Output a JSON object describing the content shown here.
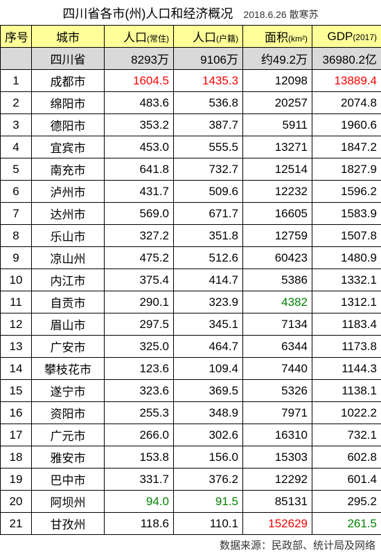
{
  "title_main": "四川省各市(州)人口和经济概况",
  "title_date": "2018.6.26 散寒苏",
  "header": {
    "idx": "序号",
    "city": "城市",
    "pop1": "人口",
    "pop1_unit": "(常住)",
    "pop2": "人口",
    "pop2_unit": "(户籍)",
    "area": "面积",
    "area_unit": "(km²)",
    "gdp": "GDP",
    "gdp_unit": "(2017)"
  },
  "total": {
    "city": "四川省",
    "pop1": "8293万",
    "pop2": "9106万",
    "area": "约49.2万",
    "gdp": "36980.2亿"
  },
  "rows": [
    {
      "idx": "1",
      "city": "成都市",
      "pop1": "1604.5",
      "pop1_c": "red",
      "pop2": "1435.3",
      "pop2_c": "red",
      "area": "12098",
      "area_c": "",
      "gdp": "13889.4",
      "gdp_c": "red"
    },
    {
      "idx": "2",
      "city": "绵阳市",
      "pop1": "483.6",
      "pop1_c": "",
      "pop2": "536.8",
      "pop2_c": "",
      "area": "20257",
      "area_c": "",
      "gdp": "2074.8",
      "gdp_c": ""
    },
    {
      "idx": "3",
      "city": "德阳市",
      "pop1": "353.2",
      "pop1_c": "",
      "pop2": "387.7",
      "pop2_c": "",
      "area": "5911",
      "area_c": "",
      "gdp": "1960.6",
      "gdp_c": ""
    },
    {
      "idx": "4",
      "city": "宜宾市",
      "pop1": "453.0",
      "pop1_c": "",
      "pop2": "555.5",
      "pop2_c": "",
      "area": "13271",
      "area_c": "",
      "gdp": "1847.2",
      "gdp_c": ""
    },
    {
      "idx": "5",
      "city": "南充市",
      "pop1": "641.8",
      "pop1_c": "",
      "pop2": "732.7",
      "pop2_c": "",
      "area": "12514",
      "area_c": "",
      "gdp": "1827.9",
      "gdp_c": ""
    },
    {
      "idx": "6",
      "city": "泸州市",
      "pop1": "431.7",
      "pop1_c": "",
      "pop2": "509.6",
      "pop2_c": "",
      "area": "12232",
      "area_c": "",
      "gdp": "1596.2",
      "gdp_c": ""
    },
    {
      "idx": "7",
      "city": "达州市",
      "pop1": "569.0",
      "pop1_c": "",
      "pop2": "671.7",
      "pop2_c": "",
      "area": "16605",
      "area_c": "",
      "gdp": "1583.9",
      "gdp_c": ""
    },
    {
      "idx": "8",
      "city": "乐山市",
      "pop1": "327.2",
      "pop1_c": "",
      "pop2": "351.8",
      "pop2_c": "",
      "area": "12759",
      "area_c": "",
      "gdp": "1507.8",
      "gdp_c": ""
    },
    {
      "idx": "9",
      "city": "凉山州",
      "pop1": "475.2",
      "pop1_c": "",
      "pop2": "512.6",
      "pop2_c": "",
      "area": "60423",
      "area_c": "",
      "gdp": "1480.9",
      "gdp_c": ""
    },
    {
      "idx": "10",
      "city": "内江市",
      "pop1": "375.4",
      "pop1_c": "",
      "pop2": "414.7",
      "pop2_c": "",
      "area": "5386",
      "area_c": "",
      "gdp": "1332.1",
      "gdp_c": ""
    },
    {
      "idx": "11",
      "city": "自贡市",
      "pop1": "290.1",
      "pop1_c": "",
      "pop2": "323.9",
      "pop2_c": "",
      "area": "4382",
      "area_c": "green",
      "gdp": "1312.1",
      "gdp_c": ""
    },
    {
      "idx": "12",
      "city": "眉山市",
      "pop1": "297.5",
      "pop1_c": "",
      "pop2": "345.1",
      "pop2_c": "",
      "area": "7134",
      "area_c": "",
      "gdp": "1183.4",
      "gdp_c": ""
    },
    {
      "idx": "13",
      "city": "广安市",
      "pop1": "325.0",
      "pop1_c": "",
      "pop2": "464.7",
      "pop2_c": "",
      "area": "6344",
      "area_c": "",
      "gdp": "1173.8",
      "gdp_c": ""
    },
    {
      "idx": "14",
      "city": "攀枝花市",
      "pop1": "123.6",
      "pop1_c": "",
      "pop2": "109.4",
      "pop2_c": "",
      "area": "7440",
      "area_c": "",
      "gdp": "1144.3",
      "gdp_c": ""
    },
    {
      "idx": "15",
      "city": "遂宁市",
      "pop1": "323.6",
      "pop1_c": "",
      "pop2": "369.5",
      "pop2_c": "",
      "area": "5326",
      "area_c": "",
      "gdp": "1138.1",
      "gdp_c": ""
    },
    {
      "idx": "16",
      "city": "资阳市",
      "pop1": "255.3",
      "pop1_c": "",
      "pop2": "348.9",
      "pop2_c": "",
      "area": "7971",
      "area_c": "",
      "gdp": "1022.2",
      "gdp_c": ""
    },
    {
      "idx": "17",
      "city": "广元市",
      "pop1": "266.0",
      "pop1_c": "",
      "pop2": "302.6",
      "pop2_c": "",
      "area": "16310",
      "area_c": "",
      "gdp": "732.1",
      "gdp_c": ""
    },
    {
      "idx": "18",
      "city": "雅安市",
      "pop1": "153.8",
      "pop1_c": "",
      "pop2": "156.0",
      "pop2_c": "",
      "area": "15303",
      "area_c": "",
      "gdp": "602.8",
      "gdp_c": ""
    },
    {
      "idx": "19",
      "city": "巴中市",
      "pop1": "331.7",
      "pop1_c": "",
      "pop2": "376.2",
      "pop2_c": "",
      "area": "12292",
      "area_c": "",
      "gdp": "601.4",
      "gdp_c": ""
    },
    {
      "idx": "20",
      "city": "阿坝州",
      "pop1": "94.0",
      "pop1_c": "green",
      "pop2": "91.5",
      "pop2_c": "green",
      "area": "85131",
      "area_c": "",
      "gdp": "295.2",
      "gdp_c": ""
    },
    {
      "idx": "21",
      "city": "甘孜州",
      "pop1": "118.6",
      "pop1_c": "",
      "pop2": "110.1",
      "pop2_c": "",
      "area": "152629",
      "area_c": "red",
      "gdp": "261.5",
      "gdp_c": "green"
    }
  ],
  "footer": "数据来源：民政部、统计局及网络"
}
